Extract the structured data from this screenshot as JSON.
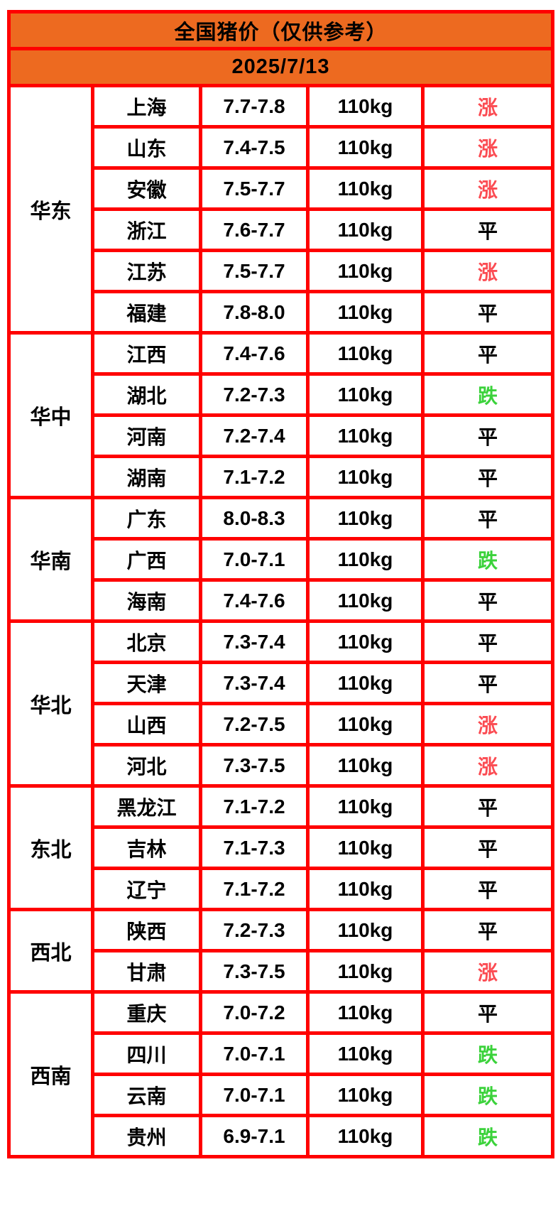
{
  "chart_data": {
    "type": "table",
    "title": "全国猪价（仅供参考）",
    "date": "2025/7/13",
    "regions": [
      {
        "name": "华东",
        "rows": [
          {
            "province": "上海",
            "price": "7.7-7.8",
            "weight": "110kg",
            "trend": "涨",
            "trend_type": "up"
          },
          {
            "province": "山东",
            "price": "7.4-7.5",
            "weight": "110kg",
            "trend": "涨",
            "trend_type": "up"
          },
          {
            "province": "安徽",
            "price": "7.5-7.7",
            "weight": "110kg",
            "trend": "涨",
            "trend_type": "up"
          },
          {
            "province": "浙江",
            "price": "7.6-7.7",
            "weight": "110kg",
            "trend": "平",
            "trend_type": "flat"
          },
          {
            "province": "江苏",
            "price": "7.5-7.7",
            "weight": "110kg",
            "trend": "涨",
            "trend_type": "up"
          },
          {
            "province": "福建",
            "price": "7.8-8.0",
            "weight": "110kg",
            "trend": "平",
            "trend_type": "flat"
          }
        ]
      },
      {
        "name": "华中",
        "rows": [
          {
            "province": "江西",
            "price": "7.4-7.6",
            "weight": "110kg",
            "trend": "平",
            "trend_type": "flat"
          },
          {
            "province": "湖北",
            "price": "7.2-7.3",
            "weight": "110kg",
            "trend": "跌",
            "trend_type": "down"
          },
          {
            "province": "河南",
            "price": "7.2-7.4",
            "weight": "110kg",
            "trend": "平",
            "trend_type": "flat"
          },
          {
            "province": "湖南",
            "price": "7.1-7.2",
            "weight": "110kg",
            "trend": "平",
            "trend_type": "flat"
          }
        ]
      },
      {
        "name": "华南",
        "rows": [
          {
            "province": "广东",
            "price": "8.0-8.3",
            "weight": "110kg",
            "trend": "平",
            "trend_type": "flat"
          },
          {
            "province": "广西",
            "price": "7.0-7.1",
            "weight": "110kg",
            "trend": "跌",
            "trend_type": "down"
          },
          {
            "province": "海南",
            "price": "7.4-7.6",
            "weight": "110kg",
            "trend": "平",
            "trend_type": "flat"
          }
        ]
      },
      {
        "name": "华北",
        "rows": [
          {
            "province": "北京",
            "price": "7.3-7.4",
            "weight": "110kg",
            "trend": "平",
            "trend_type": "flat"
          },
          {
            "province": "天津",
            "price": "7.3-7.4",
            "weight": "110kg",
            "trend": "平",
            "trend_type": "flat"
          },
          {
            "province": "山西",
            "price": "7.2-7.5",
            "weight": "110kg",
            "trend": "涨",
            "trend_type": "up"
          },
          {
            "province": "河北",
            "price": "7.3-7.5",
            "weight": "110kg",
            "trend": "涨",
            "trend_type": "up"
          }
        ]
      },
      {
        "name": "东北",
        "rows": [
          {
            "province": "黑龙江",
            "price": "7.1-7.2",
            "weight": "110kg",
            "trend": "平",
            "trend_type": "flat"
          },
          {
            "province": "吉林",
            "price": "7.1-7.3",
            "weight": "110kg",
            "trend": "平",
            "trend_type": "flat"
          },
          {
            "province": "辽宁",
            "price": "7.1-7.2",
            "weight": "110kg",
            "trend": "平",
            "trend_type": "flat"
          }
        ]
      },
      {
        "name": "西北",
        "rows": [
          {
            "province": "陕西",
            "price": "7.2-7.3",
            "weight": "110kg",
            "trend": "平",
            "trend_type": "flat"
          },
          {
            "province": "甘肃",
            "price": "7.3-7.5",
            "weight": "110kg",
            "trend": "涨",
            "trend_type": "up"
          }
        ]
      },
      {
        "name": "西南",
        "rows": [
          {
            "province": "重庆",
            "price": "7.0-7.2",
            "weight": "110kg",
            "trend": "平",
            "trend_type": "flat"
          },
          {
            "province": "四川",
            "price": "7.0-7.1",
            "weight": "110kg",
            "trend": "跌",
            "trend_type": "down"
          },
          {
            "province": "云南",
            "price": "7.0-7.1",
            "weight": "110kg",
            "trend": "跌",
            "trend_type": "down"
          },
          {
            "province": "贵州",
            "price": "6.9-7.1",
            "weight": "110kg",
            "trend": "跌",
            "trend_type": "down"
          }
        ]
      }
    ]
  },
  "colors": {
    "header_bg": "#ED6A20",
    "grid_border": "#FF0000",
    "cell_bg": "#FFFFFF",
    "text": "#000000",
    "trend_up": "#FB4B52",
    "trend_down": "#3BD23B",
    "trend_flat": "#000000"
  }
}
